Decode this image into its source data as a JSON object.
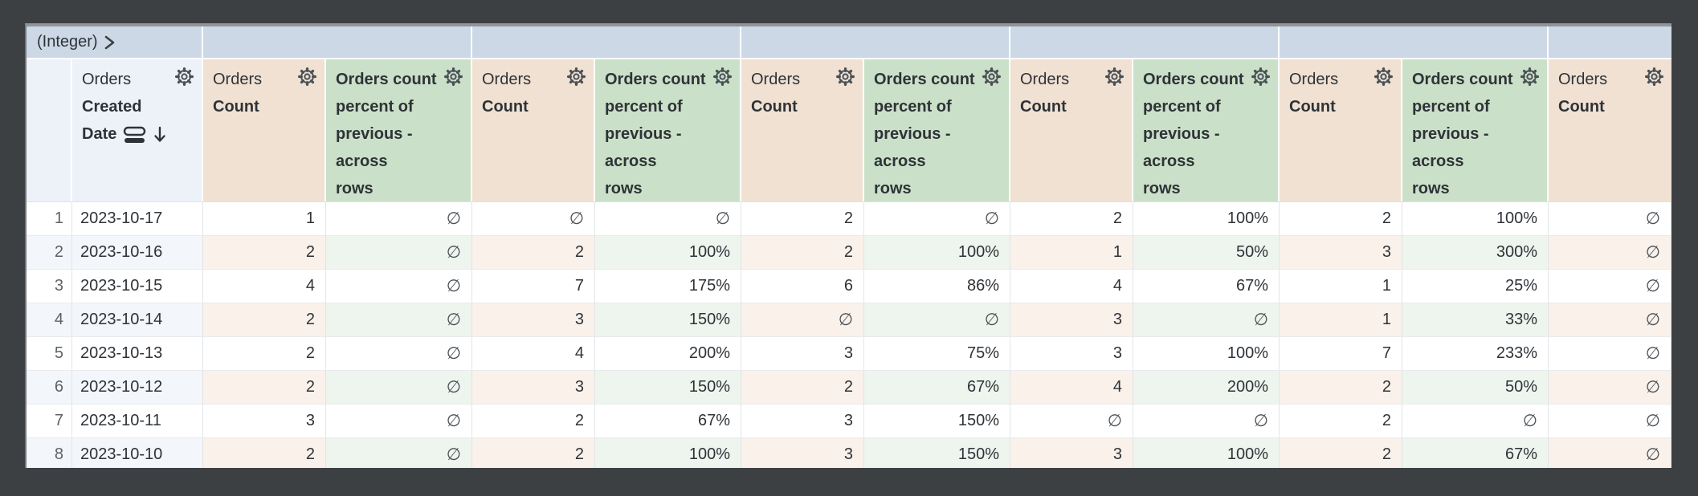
{
  "pivot_band": {
    "field_label": "(Integer)",
    "chevron_icon": "chevron-right",
    "empty_group_cells": 6
  },
  "header": {
    "row_number_header": "",
    "date_column": {
      "view": "Orders",
      "field_lines": [
        "Created",
        "Date"
      ],
      "sort_field_icon": "rows-icon",
      "sort_direction_icon": "arrow-down",
      "gear_icon": "gear"
    },
    "count_label": {
      "view": "Orders",
      "field": "Count",
      "gear_icon": "gear"
    },
    "calc_label_lines": [
      "Orders count",
      "percent of",
      "previous -",
      "across",
      "rows"
    ],
    "calc_full_label": "Orders count percent of previous - across rows"
  },
  "column_kinds": [
    "count",
    "calc",
    "count",
    "calc",
    "count",
    "calc",
    "count",
    "calc",
    "count",
    "calc",
    "count"
  ],
  "rows": [
    {
      "n": "1",
      "date": "2023-10-17",
      "values": [
        "1",
        "∅",
        "∅",
        "∅",
        "2",
        "∅",
        "2",
        "100%",
        "2",
        "100%",
        "∅"
      ]
    },
    {
      "n": "2",
      "date": "2023-10-16",
      "values": [
        "2",
        "∅",
        "2",
        "100%",
        "2",
        "100%",
        "1",
        "50%",
        "3",
        "300%",
        "∅"
      ]
    },
    {
      "n": "3",
      "date": "2023-10-15",
      "values": [
        "4",
        "∅",
        "7",
        "175%",
        "6",
        "86%",
        "4",
        "67%",
        "1",
        "25%",
        "∅"
      ]
    },
    {
      "n": "4",
      "date": "2023-10-14",
      "values": [
        "2",
        "∅",
        "3",
        "150%",
        "∅",
        "∅",
        "3",
        "∅",
        "1",
        "33%",
        "∅"
      ]
    },
    {
      "n": "5",
      "date": "2023-10-13",
      "values": [
        "2",
        "∅",
        "4",
        "200%",
        "3",
        "75%",
        "3",
        "100%",
        "7",
        "233%",
        "∅"
      ]
    },
    {
      "n": "6",
      "date": "2023-10-12",
      "values": [
        "2",
        "∅",
        "3",
        "150%",
        "2",
        "67%",
        "4",
        "200%",
        "2",
        "50%",
        "∅"
      ]
    },
    {
      "n": "7",
      "date": "2023-10-11",
      "values": [
        "3",
        "∅",
        "2",
        "67%",
        "3",
        "150%",
        "∅",
        "∅",
        "2",
        "∅",
        "∅"
      ]
    },
    {
      "n": "8",
      "date": "2023-10-10",
      "values": [
        "2",
        "∅",
        "2",
        "100%",
        "3",
        "150%",
        "3",
        "100%",
        "2",
        "67%",
        "∅"
      ]
    }
  ],
  "null_symbol": "∅",
  "colors": {
    "frame_background": "#3c4043",
    "pivot_band_blue": "#ccd8e5",
    "dimension_header": "#edf1f8",
    "measure_header_beige": "#f0e1d2",
    "calc_header_green": "#cbe0c8",
    "stripe_dimension": "#f3f6fa",
    "stripe_measure": "#f9f1ea",
    "stripe_calc": "#eef5ee",
    "text_dark": "#2e3338"
  }
}
